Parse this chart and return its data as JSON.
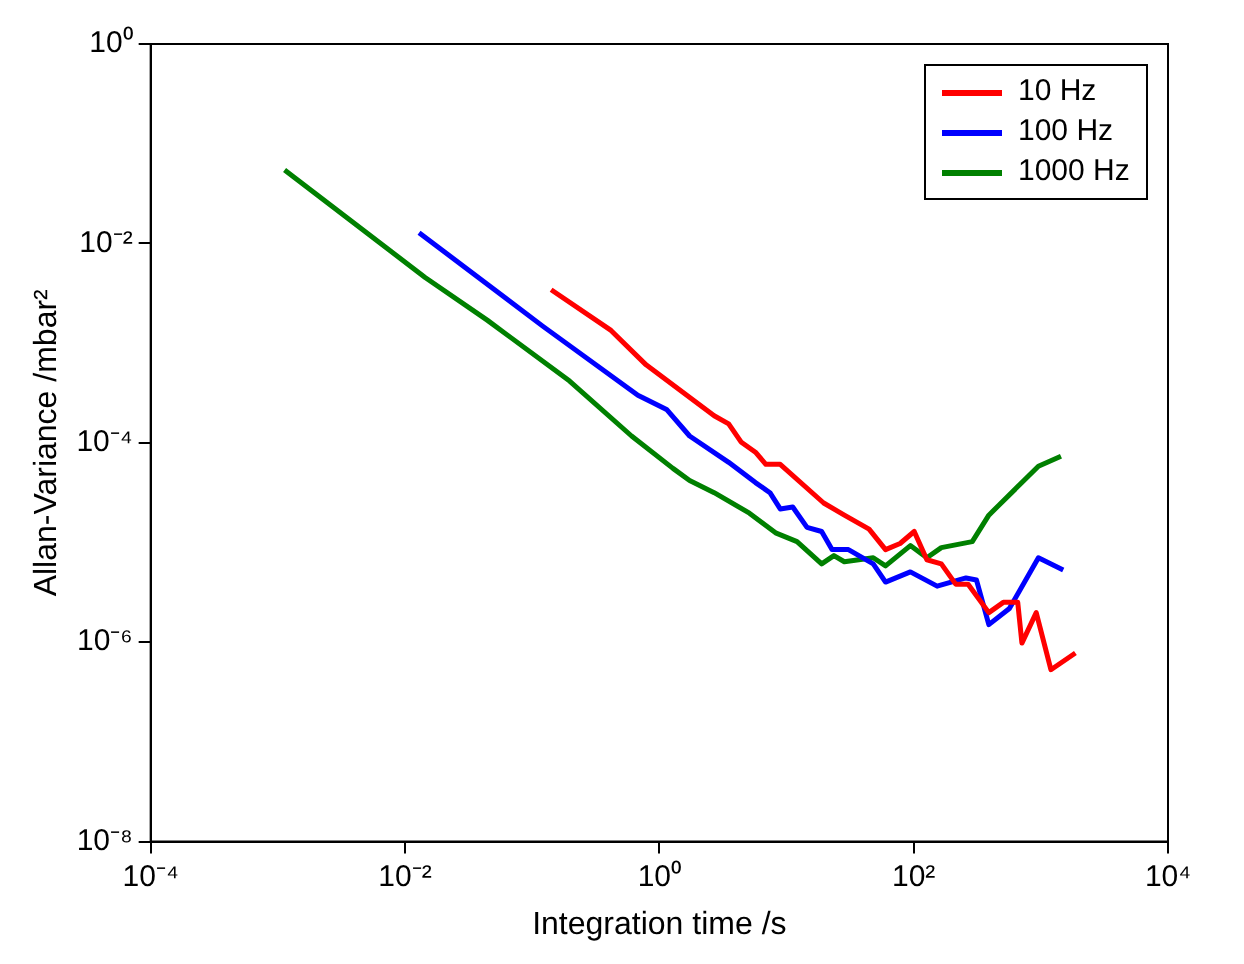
{
  "chart_data": {
    "type": "line",
    "xlabel": "Integration time /s",
    "ylabel": "Allan-Variance /mbar²",
    "log": "xy",
    "grid": false,
    "legend": "top right",
    "marker": "none",
    "line_style": "solid",
    "xlim": [
      0.0001,
      10000
    ],
    "ylim": [
      1e-08,
      1
    ],
    "xticks": [
      {
        "value": 0.0001,
        "label": "10⁻⁴"
      },
      {
        "value": 0.01,
        "label": "10⁻²"
      },
      {
        "value": 1,
        "label": "10⁰"
      },
      {
        "value": 100,
        "label": "10²"
      },
      {
        "value": 10000,
        "label": "10⁴"
      }
    ],
    "yticks": [
      {
        "value": 1e-08,
        "label": "10⁻⁸"
      },
      {
        "value": 1e-06,
        "label": "10⁻⁶"
      },
      {
        "value": 0.0001,
        "label": "10⁻⁴"
      },
      {
        "value": 0.01,
        "label": "10⁻²"
      },
      {
        "value": 1,
        "label": "10⁰"
      }
    ],
    "series": [
      {
        "name": "10 Hz",
        "color": "#ff0000",
        "x": [
          0.141,
          0.417,
          0.787,
          2.7,
          3.51,
          4.39,
          5.7,
          6.88,
          8.93,
          19.6,
          28.5,
          44.6,
          60.1,
          78.2,
          101,
          127,
          165,
          214,
          268,
          390,
          507,
          658,
          710,
          920,
          1200,
          1870
        ],
        "values": [
          0.00343,
          0.00134,
          0.000605,
          0.000187,
          0.000155,
          0.000102,
          8.05e-05,
          6.08e-05,
          6.08e-05,
          2.49e-05,
          1.88e-05,
          1.36e-05,
          8.49e-06,
          9.77e-06,
          1.29e-05,
          6.71e-06,
          6.11e-06,
          3.82e-06,
          3.82e-06,
          1.98e-06,
          2.51e-06,
          2.51e-06,
          9.8e-07,
          1.98e-06,
          5.3e-07,
          7.8e-07
        ]
      },
      {
        "name": "100 Hz",
        "color": "#0000ff",
        "x": [
          0.0129,
          0.121,
          0.678,
          1.14,
          1.73,
          3.51,
          5.7,
          7.41,
          8.93,
          11.2,
          14.5,
          18.9,
          22.8,
          30.7,
          48.1,
          60.1,
          94.2,
          153,
          258,
          312,
          390,
          566,
          957,
          1500
        ],
        "values": [
          0.0128,
          0.00148,
          0.0003,
          0.000216,
          0.000117,
          6.37e-05,
          3.99e-05,
          3.16e-05,
          2.17e-05,
          2.27e-05,
          1.42e-05,
          1.29e-05,
          8.49e-06,
          8.49e-06,
          6.11e-06,
          4.01e-06,
          5.07e-06,
          3.65e-06,
          4.41e-06,
          4.2e-06,
          1.5e-06,
          2.18e-06,
          7.03e-06,
          5.31e-06
        ]
      },
      {
        "name": "1000 Hz",
        "color": "#008000",
        "x": [
          0.00113,
          0.0144,
          0.0443,
          0.197,
          0.605,
          1.28,
          1.73,
          2.7,
          5.11,
          8.3,
          12.1,
          18.9,
          23.6,
          28.5,
          48.1,
          60.1,
          94.2,
          127,
          165,
          289,
          390,
          470,
          736,
          957,
          1440
        ],
        "values": [
          0.0546,
          0.00455,
          0.0017,
          0.000416,
          0.000117,
          5.54e-05,
          4.18e-05,
          3.16e-05,
          1.97e-05,
          1.24e-05,
          1.02e-05,
          6.11e-06,
          7.38e-06,
          6.41e-06,
          7.03e-06,
          5.83e-06,
          9.31e-06,
          7.03e-06,
          8.89e-06,
          1.02e-05,
          1.88e-05,
          2.38e-05,
          4.18e-05,
          5.81e-05,
          7.34e-05
        ]
      }
    ]
  }
}
